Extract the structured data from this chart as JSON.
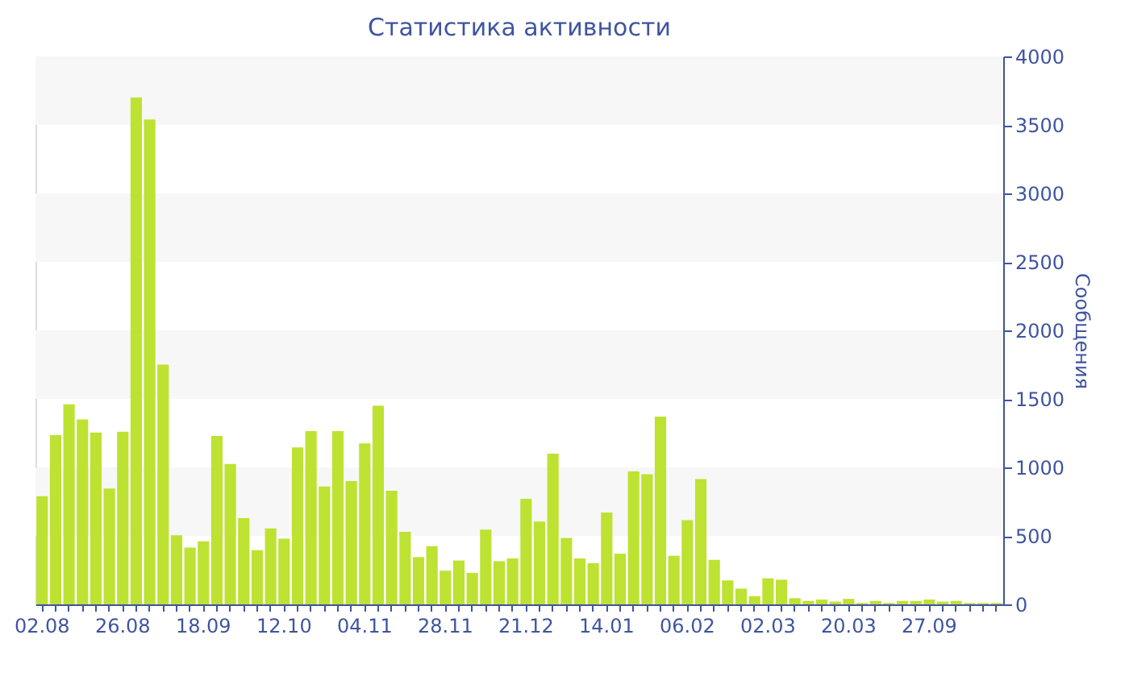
{
  "chart_data": {
    "type": "bar",
    "title": "Статистика активности",
    "ylabel": "Сообщения",
    "categories": [
      "02.08",
      null,
      null,
      null,
      null,
      null,
      "26.08",
      null,
      null,
      null,
      null,
      null,
      "18.09",
      null,
      null,
      null,
      null,
      null,
      "12.10",
      null,
      null,
      null,
      null,
      null,
      "04.11",
      null,
      null,
      null,
      null,
      null,
      "28.11",
      null,
      null,
      null,
      null,
      null,
      "21.12",
      null,
      null,
      null,
      null,
      null,
      "14.01",
      null,
      null,
      null,
      null,
      null,
      "06.02",
      null,
      null,
      null,
      null,
      null,
      "02.03",
      null,
      null,
      null,
      null,
      null,
      "20.03",
      null,
      null,
      null,
      null,
      null,
      "27.09",
      null,
      null,
      null,
      null,
      null
    ],
    "values": [
      790,
      1235,
      1460,
      1350,
      1255,
      845,
      1260,
      3700,
      3540,
      1750,
      505,
      415,
      460,
      1230,
      1025,
      630,
      395,
      555,
      480,
      1145,
      1265,
      860,
      1265,
      900,
      1175,
      1450,
      830,
      530,
      345,
      425,
      245,
      320,
      230,
      545,
      315,
      335,
      770,
      605,
      1100,
      485,
      335,
      300,
      670,
      370,
      970,
      950,
      1370,
      355,
      615,
      915,
      325,
      175,
      115,
      60,
      190,
      180,
      45,
      25,
      35,
      20,
      40,
      10,
      25,
      10,
      25,
      25,
      35,
      20,
      25,
      10,
      10,
      10
    ],
    "color": "#bde232",
    "ylim": [
      0,
      4000
    ],
    "yticks": [
      0,
      500,
      1000,
      1500,
      2000,
      2500,
      3000,
      3500,
      4000
    ],
    "bands": [
      {
        "axis": "y",
        "from": 500,
        "to": 1000,
        "color": "#f7f7f7"
      },
      {
        "axis": "y",
        "from": 1500,
        "to": 2000,
        "color": "#f7f7f7"
      },
      {
        "axis": "y",
        "from": 2500,
        "to": 3000,
        "color": "#f7f7f7"
      },
      {
        "axis": "y",
        "from": 3500,
        "to": 4000,
        "color": "#f7f7f7"
      }
    ]
  }
}
